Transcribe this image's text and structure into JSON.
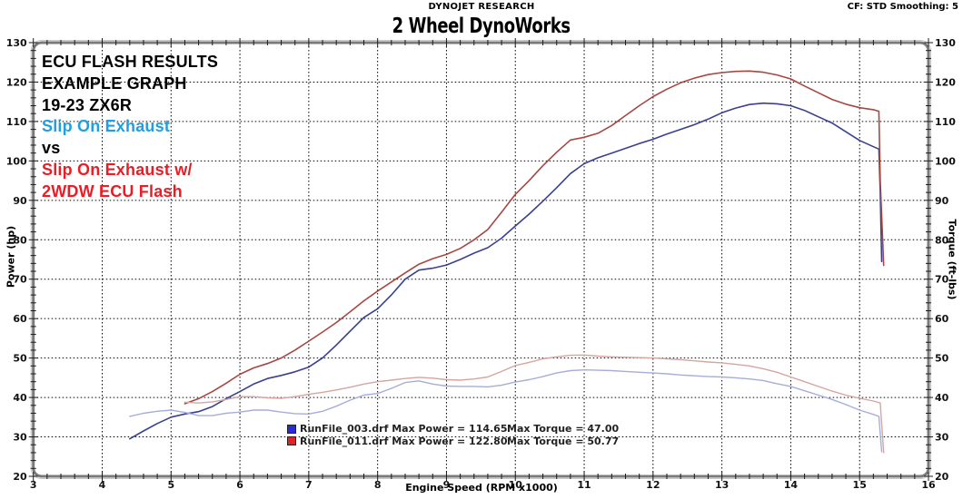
{
  "header": {
    "center": "DYNOJET RESEARCH",
    "right": "CF: STD  Smoothing: 5"
  },
  "title": "2 Wheel DynoWorks",
  "annotations": [
    {
      "text": "ECU FLASH RESULTS",
      "color": "#000000"
    },
    {
      "text": "EXAMPLE GRAPH",
      "color": "#000000"
    },
    {
      "text": "19-23 ZX6R",
      "color": "#000000"
    },
    {
      "text": "Slip On Exhaust",
      "color": "#1f9fe0"
    },
    {
      "text": "vs",
      "color": "#000000"
    },
    {
      "text": "Slip On Exhaust w/",
      "color": "#ec1c24"
    },
    {
      "text": "2WDW ECU Flash",
      "color": "#ec1c24"
    }
  ],
  "legend": {
    "entries": [
      {
        "swatch": "#2b2bd6",
        "file": "RunFile_003.drf",
        "max_power": 114.65,
        "max_torque": 47.0,
        "label": "RunFile_003.drf Max Power = 114.65",
        "label2": "Max Torque = 47.00"
      },
      {
        "swatch": "#d92525",
        "file": "RunFile_011.drf",
        "max_power": 122.8,
        "max_torque": 50.77,
        "label": "RunFile_011.drf Max Power = 122.80",
        "label2": "Max Torque = 50.77"
      }
    ]
  },
  "chart_data": {
    "type": "line",
    "title": "2 Wheel DynoWorks",
    "x_axis": {
      "label": "Engine Speed (RPM x1000)",
      "min": 3,
      "max": 16,
      "major_step": 1,
      "minor_step": 0.2
    },
    "y_left": {
      "label": "Power (hp)",
      "min": 20,
      "max": 130,
      "major_step": 10,
      "minor_step": 2
    },
    "y_right": {
      "label": "Torque (ft-lbs)",
      "min": 20,
      "max": 130,
      "major_step": 10,
      "minor_step": 2
    },
    "grid": {
      "style": "dotted",
      "color": "#000000"
    },
    "series": [
      {
        "name": "RunFile_003.drf Power (hp)",
        "axis": "left",
        "color": "#39418f",
        "width": 1.6,
        "points": [
          [
            4.4,
            29.5
          ],
          [
            4.6,
            31.5
          ],
          [
            4.8,
            33.4
          ],
          [
            5.0,
            35.0
          ],
          [
            5.2,
            35.8
          ],
          [
            5.4,
            36.4
          ],
          [
            5.6,
            37.7
          ],
          [
            5.8,
            39.7
          ],
          [
            6.0,
            41.5
          ],
          [
            6.2,
            43.4
          ],
          [
            6.4,
            44.8
          ],
          [
            6.6,
            45.6
          ],
          [
            6.8,
            46.5
          ],
          [
            7.0,
            47.7
          ],
          [
            7.2,
            50.0
          ],
          [
            7.4,
            53.3
          ],
          [
            7.6,
            56.8
          ],
          [
            7.8,
            60.3
          ],
          [
            8.0,
            62.5
          ],
          [
            8.2,
            66.0
          ],
          [
            8.4,
            70.0
          ],
          [
            8.6,
            72.3
          ],
          [
            8.8,
            72.8
          ],
          [
            9.0,
            73.6
          ],
          [
            9.2,
            75.0
          ],
          [
            9.4,
            76.6
          ],
          [
            9.6,
            78.0
          ],
          [
            9.8,
            80.4
          ],
          [
            10.0,
            83.5
          ],
          [
            10.2,
            86.5
          ],
          [
            10.4,
            89.8
          ],
          [
            10.6,
            93.2
          ],
          [
            10.8,
            96.8
          ],
          [
            11.0,
            99.3
          ],
          [
            11.2,
            100.8
          ],
          [
            11.4,
            102.0
          ],
          [
            11.6,
            103.2
          ],
          [
            11.8,
            104.4
          ],
          [
            12.0,
            105.5
          ],
          [
            12.2,
            106.8
          ],
          [
            12.4,
            108.0
          ],
          [
            12.6,
            109.2
          ],
          [
            12.8,
            110.6
          ],
          [
            13.0,
            112.2
          ],
          [
            13.2,
            113.4
          ],
          [
            13.4,
            114.3
          ],
          [
            13.6,
            114.65
          ],
          [
            13.8,
            114.5
          ],
          [
            14.0,
            114.0
          ],
          [
            14.2,
            112.8
          ],
          [
            14.4,
            111.2
          ],
          [
            14.6,
            109.6
          ],
          [
            14.8,
            107.4
          ],
          [
            15.0,
            105.2
          ],
          [
            15.2,
            103.6
          ],
          [
            15.28,
            103.0
          ],
          [
            15.3,
            92.0
          ],
          [
            15.32,
            74.5
          ]
        ]
      },
      {
        "name": "RunFile_011.drf Power (hp)",
        "axis": "left",
        "color": "#a64742",
        "width": 1.6,
        "points": [
          [
            5.2,
            38.4
          ],
          [
            5.4,
            39.7
          ],
          [
            5.6,
            41.5
          ],
          [
            5.8,
            43.6
          ],
          [
            6.0,
            45.9
          ],
          [
            6.2,
            47.5
          ],
          [
            6.4,
            48.6
          ],
          [
            6.6,
            50.0
          ],
          [
            6.8,
            52.0
          ],
          [
            7.0,
            54.3
          ],
          [
            7.2,
            56.6
          ],
          [
            7.4,
            59.0
          ],
          [
            7.6,
            61.7
          ],
          [
            7.8,
            64.5
          ],
          [
            8.0,
            67.0
          ],
          [
            8.2,
            69.3
          ],
          [
            8.4,
            71.6
          ],
          [
            8.6,
            73.8
          ],
          [
            8.8,
            75.2
          ],
          [
            9.0,
            76.3
          ],
          [
            9.2,
            77.8
          ],
          [
            9.4,
            80.0
          ],
          [
            9.6,
            82.6
          ],
          [
            9.8,
            87.0
          ],
          [
            10.0,
            91.5
          ],
          [
            10.2,
            95.0
          ],
          [
            10.4,
            98.8
          ],
          [
            10.6,
            102.2
          ],
          [
            10.8,
            105.3
          ],
          [
            11.0,
            106.0
          ],
          [
            11.2,
            107.0
          ],
          [
            11.4,
            109.0
          ],
          [
            11.6,
            111.5
          ],
          [
            11.8,
            114.0
          ],
          [
            12.0,
            116.3
          ],
          [
            12.2,
            118.2
          ],
          [
            12.4,
            119.8
          ],
          [
            12.6,
            121.0
          ],
          [
            12.8,
            121.9
          ],
          [
            13.0,
            122.4
          ],
          [
            13.2,
            122.7
          ],
          [
            13.4,
            122.8
          ],
          [
            13.6,
            122.5
          ],
          [
            13.8,
            121.8
          ],
          [
            14.0,
            120.8
          ],
          [
            14.2,
            119.0
          ],
          [
            14.4,
            117.3
          ],
          [
            14.6,
            115.6
          ],
          [
            14.8,
            114.4
          ],
          [
            15.0,
            113.5
          ],
          [
            15.2,
            113.0
          ],
          [
            15.28,
            112.6
          ],
          [
            15.3,
            95.0
          ],
          [
            15.35,
            73.5
          ]
        ]
      },
      {
        "name": "RunFile_003.drf Torque (ft-lbs)",
        "axis": "right",
        "color": "#a6aed8",
        "width": 1.4,
        "points": [
          [
            4.4,
            35.2
          ],
          [
            4.6,
            36.0
          ],
          [
            4.8,
            36.5
          ],
          [
            5.0,
            36.8
          ],
          [
            5.2,
            36.2
          ],
          [
            5.4,
            35.4
          ],
          [
            5.6,
            35.4
          ],
          [
            5.8,
            36.0
          ],
          [
            6.0,
            36.3
          ],
          [
            6.2,
            36.8
          ],
          [
            6.4,
            36.8
          ],
          [
            6.6,
            36.3
          ],
          [
            6.8,
            35.9
          ],
          [
            7.0,
            35.8
          ],
          [
            7.2,
            36.5
          ],
          [
            7.4,
            37.8
          ],
          [
            7.6,
            39.3
          ],
          [
            7.8,
            40.6
          ],
          [
            8.0,
            41.0
          ],
          [
            8.2,
            42.3
          ],
          [
            8.4,
            43.8
          ],
          [
            8.6,
            44.2
          ],
          [
            8.8,
            43.4
          ],
          [
            9.0,
            42.9
          ],
          [
            9.2,
            42.8
          ],
          [
            9.4,
            42.8
          ],
          [
            9.6,
            42.7
          ],
          [
            9.8,
            43.1
          ],
          [
            10.0,
            43.9
          ],
          [
            10.2,
            44.5
          ],
          [
            10.4,
            45.3
          ],
          [
            10.6,
            46.2
          ],
          [
            10.8,
            46.8
          ],
          [
            11.0,
            47.0
          ],
          [
            11.2,
            46.9
          ],
          [
            11.4,
            46.8
          ],
          [
            11.6,
            46.6
          ],
          [
            11.8,
            46.4
          ],
          [
            12.0,
            46.2
          ],
          [
            12.2,
            46.0
          ],
          [
            12.4,
            45.7
          ],
          [
            12.6,
            45.5
          ],
          [
            12.8,
            45.3
          ],
          [
            13.0,
            45.2
          ],
          [
            13.2,
            45.0
          ],
          [
            13.4,
            44.7
          ],
          [
            13.6,
            44.3
          ],
          [
            13.8,
            43.5
          ],
          [
            14.0,
            42.8
          ],
          [
            14.2,
            41.7
          ],
          [
            14.4,
            40.6
          ],
          [
            14.6,
            39.5
          ],
          [
            14.8,
            38.2
          ],
          [
            15.0,
            36.8
          ],
          [
            15.2,
            35.7
          ],
          [
            15.28,
            35.2
          ],
          [
            15.32,
            26.2
          ]
        ]
      },
      {
        "name": "RunFile_011.drf Torque (ft-lbs)",
        "axis": "right",
        "color": "#d6a5a0",
        "width": 1.4,
        "points": [
          [
            5.2,
            38.8
          ],
          [
            5.4,
            38.6
          ],
          [
            5.6,
            38.9
          ],
          [
            5.8,
            39.5
          ],
          [
            6.0,
            40.2
          ],
          [
            6.2,
            40.2
          ],
          [
            6.4,
            39.9
          ],
          [
            6.6,
            39.8
          ],
          [
            6.8,
            40.2
          ],
          [
            7.0,
            40.8
          ],
          [
            7.2,
            41.3
          ],
          [
            7.4,
            41.9
          ],
          [
            7.6,
            42.6
          ],
          [
            7.8,
            43.4
          ],
          [
            8.0,
            44.0
          ],
          [
            8.2,
            44.4
          ],
          [
            8.4,
            44.8
          ],
          [
            8.6,
            45.1
          ],
          [
            8.8,
            44.9
          ],
          [
            9.0,
            44.5
          ],
          [
            9.2,
            44.4
          ],
          [
            9.4,
            44.7
          ],
          [
            9.6,
            45.2
          ],
          [
            9.8,
            46.6
          ],
          [
            10.0,
            48.1
          ],
          [
            10.2,
            48.9
          ],
          [
            10.4,
            49.8
          ],
          [
            10.6,
            50.3
          ],
          [
            10.8,
            50.7
          ],
          [
            11.0,
            50.77
          ],
          [
            11.2,
            50.5
          ],
          [
            11.4,
            50.3
          ],
          [
            11.6,
            50.2
          ],
          [
            11.8,
            50.1
          ],
          [
            12.0,
            50.0
          ],
          [
            12.2,
            49.8
          ],
          [
            12.4,
            49.6
          ],
          [
            12.6,
            49.3
          ],
          [
            12.8,
            49.0
          ],
          [
            13.0,
            48.8
          ],
          [
            13.2,
            48.4
          ],
          [
            13.4,
            48.0
          ],
          [
            13.6,
            47.3
          ],
          [
            13.8,
            46.4
          ],
          [
            14.0,
            45.2
          ],
          [
            14.2,
            44.0
          ],
          [
            14.4,
            42.8
          ],
          [
            14.6,
            41.6
          ],
          [
            14.8,
            40.6
          ],
          [
            15.0,
            39.8
          ],
          [
            15.2,
            39.1
          ],
          [
            15.3,
            38.6
          ],
          [
            15.35,
            26.0
          ]
        ]
      }
    ]
  }
}
